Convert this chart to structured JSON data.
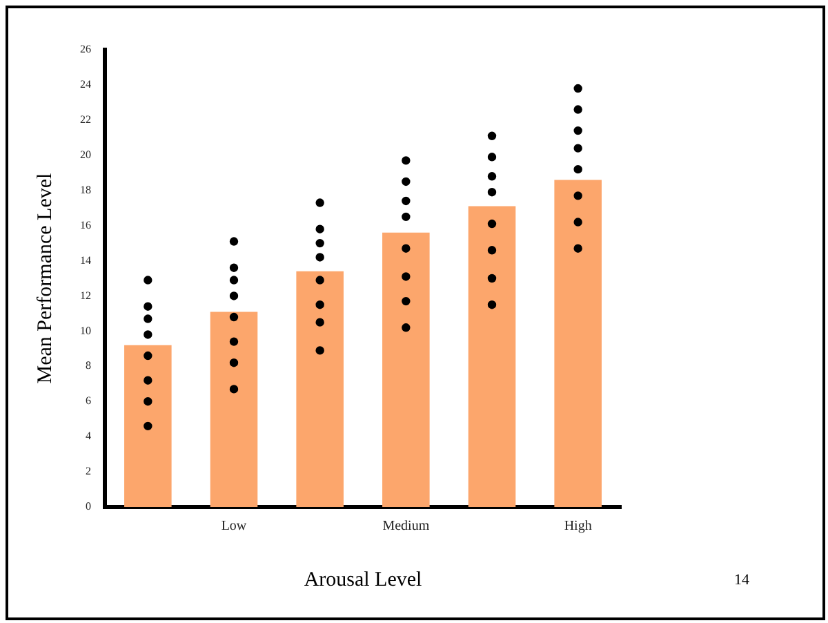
{
  "chart_data": {
    "type": "bar",
    "xlabel": "Arousal Level",
    "ylabel": "Mean Performance Level",
    "categories": [
      null,
      "Low",
      null,
      "Medium",
      null,
      "High"
    ],
    "series": [
      {
        "color": "#fca66c",
        "values": [
          9.2,
          11.1,
          13.4,
          15.6,
          17.1,
          18.6
        ]
      },
      {
        "type": "scatter",
        "color": "#000000",
        "values": [
          12.9,
          15.1,
          17.3,
          19.7,
          21.1,
          23.8
        ]
      },
      {
        "type": "scatter",
        "color": "#000000",
        "values": [
          11.4,
          13.6,
          15.8,
          18.5,
          19.9,
          22.6
        ]
      },
      {
        "type": "scatter",
        "color": "#000000",
        "values": [
          10.7,
          12.9,
          15.0,
          17.4,
          18.8,
          21.4
        ]
      },
      {
        "type": "scatter",
        "color": "#000000",
        "values": [
          9.8,
          12.0,
          14.2,
          16.5,
          17.9,
          20.4
        ]
      },
      {
        "type": "scatter",
        "color": "#000000",
        "values": [
          8.6,
          10.8,
          12.9,
          14.7,
          16.1,
          19.2
        ]
      },
      {
        "type": "scatter",
        "color": "#000000",
        "values": [
          7.2,
          9.4,
          11.5,
          13.1,
          14.6,
          17.7
        ]
      },
      {
        "type": "scatter",
        "color": "#000000",
        "values": [
          6.0,
          8.2,
          10.5,
          11.7,
          13.0,
          16.2
        ]
      },
      {
        "type": "scatter",
        "color": "#000000",
        "values": [
          4.6,
          6.7,
          8.9,
          10.2,
          11.5,
          14.7
        ]
      }
    ],
    "ylim": [
      0,
      26
    ],
    "yticks": [
      0,
      2,
      4,
      6,
      8,
      10,
      12,
      14,
      16,
      18,
      20,
      22,
      24,
      26
    ],
    "grid": false,
    "legend": false,
    "marker": "circle",
    "annotations": [
      "14"
    ]
  }
}
